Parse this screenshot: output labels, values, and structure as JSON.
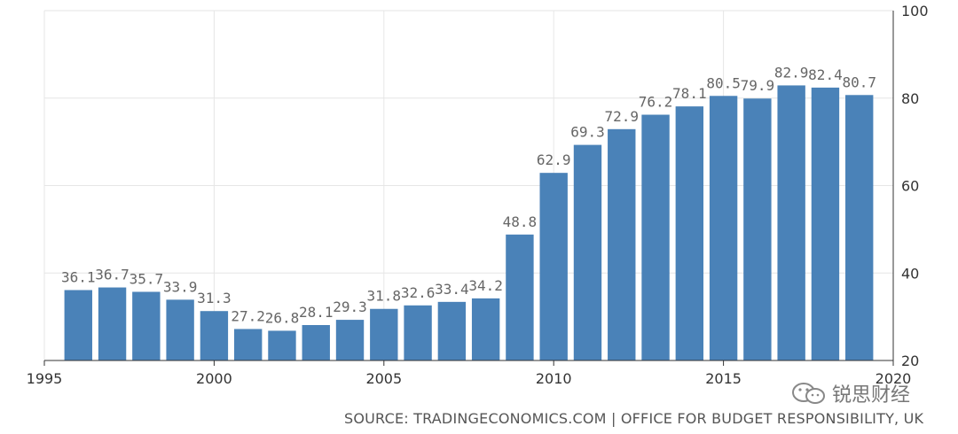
{
  "chart_data": {
    "type": "bar",
    "x": [
      1996,
      1997,
      1998,
      1999,
      2000,
      2001,
      2002,
      2003,
      2004,
      2005,
      2006,
      2007,
      2008,
      2009,
      2010,
      2011,
      2012,
      2013,
      2014,
      2015,
      2016,
      2017,
      2018,
      2019
    ],
    "values": [
      36.1,
      36.7,
      35.7,
      33.9,
      31.3,
      27.2,
      26.8,
      28.1,
      29.3,
      31.8,
      32.6,
      33.4,
      34.2,
      48.8,
      62.9,
      69.3,
      72.9,
      76.2,
      78.1,
      80.5,
      79.9,
      82.9,
      82.4,
      80.7
    ],
    "data_labels": [
      "36.1",
      "36.7",
      "35.7",
      "33.9",
      "31.3",
      "27.2",
      "26.8",
      "28.1",
      "29.3",
      "31.8",
      "32.6",
      "33.4",
      "34.2",
      "48.8",
      "62.9",
      "69.3",
      "72.9",
      "76.2",
      "78.1",
      "80.5",
      "79.9",
      "82.9",
      "82.4",
      "80.7"
    ],
    "xlim": [
      1995,
      2020
    ],
    "ylim": [
      20,
      100
    ],
    "xticks": [
      "1995",
      "2000",
      "2005",
      "2010",
      "2015",
      "2020"
    ],
    "yticks": [
      "20",
      "40",
      "60",
      "80",
      "100"
    ],
    "yaxis_side": "right",
    "grid": true,
    "bar_color": "#4a82b8",
    "title": "",
    "xlabel": "",
    "ylabel": ""
  },
  "source_text": "SOURCE: TRADINGECONOMICS.COM | OFFICE FOR BUDGET RESPONSIBILITY, UK",
  "watermark": {
    "icon": "wechat-icon",
    "text": "锐思财经"
  }
}
